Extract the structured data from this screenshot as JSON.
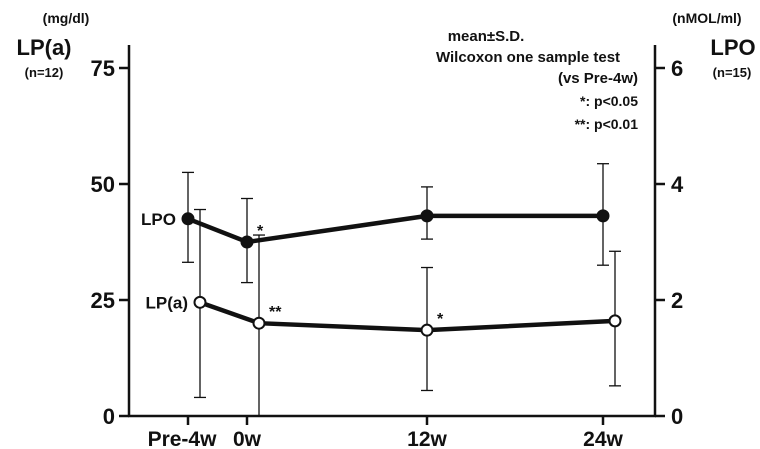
{
  "chart_data": {
    "type": "line",
    "categories": [
      "Pre-4w",
      "0w",
      "12w",
      "24w"
    ],
    "left_axis": {
      "title": "LP(a)",
      "unit": "(mg/dl)",
      "n": "(n=12)",
      "ylim": [
        0,
        75
      ],
      "ticks": [
        "0",
        "25",
        "50",
        "75"
      ]
    },
    "right_axis": {
      "title": "LPO",
      "unit": "(nMOL/ml)",
      "n": "(n=15)",
      "ylim": [
        0,
        6
      ],
      "ticks": [
        "0",
        "2",
        "4",
        "6"
      ]
    },
    "series": [
      {
        "name": "LPO",
        "axis": "right",
        "marker": "filled",
        "values": [
          3.4,
          3.0,
          3.45,
          3.45
        ],
        "sd_low": [
          2.65,
          2.3,
          3.05,
          2.6
        ],
        "sd_high": [
          4.2,
          3.75,
          3.95,
          4.35
        ],
        "significance": [
          "",
          "*",
          "",
          ""
        ]
      },
      {
        "name": "LP(a)",
        "axis": "left",
        "marker": "open",
        "values": [
          24.5,
          20,
          18.5,
          20.5
        ],
        "sd_low": [
          4,
          0,
          5.5,
          6.5
        ],
        "sd_high": [
          44.5,
          39,
          32,
          35.5
        ],
        "significance": [
          "",
          "**",
          "*",
          ""
        ]
      }
    ],
    "legend": [
      "mean±S.D.",
      "Wilcoxon one sample test",
      "(vs Pre-4w)",
      "*: p<0.05",
      "**: p<0.01"
    ]
  }
}
